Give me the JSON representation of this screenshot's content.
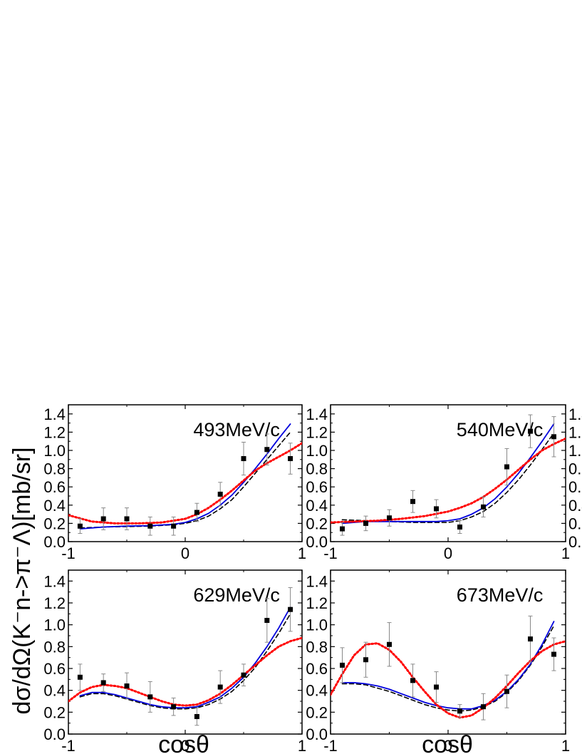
{
  "ylabel": "dσ/dΩ(K⁻n->π⁻Λ)[mb/sr]",
  "xlabel": "cosθ",
  "colors": {
    "dashed": "#000000",
    "solid": "#0000dd",
    "dotted": "#ff0000",
    "errorbar": "#888888",
    "points": "#000000"
  },
  "chart_data": [
    {
      "type": "scatter",
      "title": "493MeV/c",
      "xlim": [
        -1,
        1
      ],
      "ylim": [
        0.0,
        1.5
      ],
      "xticks": [
        "-1",
        "0",
        "1"
      ],
      "yticks": [
        "0.0",
        "0.2",
        "0.4",
        "0.6",
        "0.8",
        "1.0",
        "1.2",
        "1.4"
      ],
      "points": {
        "x": [
          -0.9,
          -0.7,
          -0.5,
          -0.3,
          -0.1,
          0.1,
          0.3,
          0.5,
          0.7,
          0.9
        ],
        "y": [
          0.17,
          0.25,
          0.25,
          0.17,
          0.17,
          0.32,
          0.52,
          0.91,
          1.01,
          0.91
        ],
        "err": [
          0.08,
          0.12,
          0.12,
          0.1,
          0.1,
          0.1,
          0.13,
          0.18,
          0.17,
          0.17
        ]
      },
      "series": [
        {
          "style": "dashed",
          "x": [
            -0.9,
            -0.7,
            -0.5,
            -0.3,
            -0.1,
            0.0,
            0.1,
            0.2,
            0.3,
            0.4,
            0.5,
            0.6,
            0.7,
            0.8,
            0.9
          ],
          "y": [
            0.15,
            0.16,
            0.165,
            0.17,
            0.185,
            0.2,
            0.23,
            0.28,
            0.36,
            0.46,
            0.6,
            0.75,
            0.9,
            1.05,
            1.2
          ]
        },
        {
          "style": "solid",
          "x": [
            -0.9,
            -0.7,
            -0.5,
            -0.3,
            -0.1,
            0.0,
            0.1,
            0.2,
            0.3,
            0.4,
            0.5,
            0.6,
            0.7,
            0.8,
            0.9
          ],
          "y": [
            0.14,
            0.16,
            0.17,
            0.175,
            0.19,
            0.21,
            0.25,
            0.31,
            0.4,
            0.51,
            0.65,
            0.8,
            0.96,
            1.13,
            1.29
          ]
        },
        {
          "style": "dotted",
          "x": [
            -1.0,
            -0.8,
            -0.6,
            -0.4,
            -0.2,
            0.0,
            0.1,
            0.2,
            0.3,
            0.4,
            0.5,
            0.6,
            0.7,
            0.8,
            0.9,
            1.0
          ],
          "y": [
            0.29,
            0.22,
            0.2,
            0.2,
            0.21,
            0.25,
            0.3,
            0.37,
            0.46,
            0.56,
            0.67,
            0.78,
            0.86,
            0.93,
            1.0,
            1.08
          ]
        }
      ]
    },
    {
      "type": "scatter",
      "title": "540MeV/c",
      "xlim": [
        -1,
        1
      ],
      "ylim": [
        0.0,
        1.5
      ],
      "xticks": [
        "-1",
        "0",
        "1"
      ],
      "yticks": [
        "0.0",
        "0.2",
        "0.4",
        "0.6",
        "0.8",
        "1.0",
        "1.2",
        "1.4"
      ],
      "points": {
        "x": [
          -0.9,
          -0.7,
          -0.5,
          -0.3,
          -0.1,
          0.1,
          0.3,
          0.5,
          0.7,
          0.9
        ],
        "y": [
          0.14,
          0.2,
          0.26,
          0.44,
          0.36,
          0.16,
          0.38,
          0.82,
          1.21,
          1.15
        ],
        "err": [
          0.07,
          0.08,
          0.09,
          0.12,
          0.1,
          0.07,
          0.11,
          0.2,
          0.18,
          0.22
        ]
      },
      "series": [
        {
          "style": "dashed",
          "x": [
            -0.9,
            -0.7,
            -0.5,
            -0.3,
            -0.1,
            0.0,
            0.1,
            0.2,
            0.3,
            0.4,
            0.5,
            0.6,
            0.7,
            0.8,
            0.9
          ],
          "y": [
            0.24,
            0.23,
            0.22,
            0.21,
            0.21,
            0.21,
            0.23,
            0.27,
            0.33,
            0.42,
            0.54,
            0.68,
            0.84,
            1.01,
            1.19
          ]
        },
        {
          "style": "solid",
          "x": [
            -0.9,
            -0.7,
            -0.5,
            -0.3,
            -0.1,
            0.0,
            0.1,
            0.2,
            0.3,
            0.4,
            0.5,
            0.6,
            0.7,
            0.8,
            0.9
          ],
          "y": [
            0.2,
            0.22,
            0.22,
            0.22,
            0.22,
            0.23,
            0.25,
            0.3,
            0.37,
            0.47,
            0.6,
            0.75,
            0.92,
            1.1,
            1.29
          ]
        },
        {
          "style": "dotted",
          "x": [
            -1.0,
            -0.8,
            -0.6,
            -0.4,
            -0.2,
            0.0,
            0.1,
            0.2,
            0.3,
            0.4,
            0.5,
            0.6,
            0.7,
            0.8,
            0.9,
            1.0
          ],
          "y": [
            0.21,
            0.22,
            0.23,
            0.25,
            0.28,
            0.33,
            0.37,
            0.42,
            0.49,
            0.58,
            0.68,
            0.79,
            0.9,
            1.0,
            1.07,
            1.13
          ]
        }
      ]
    },
    {
      "type": "scatter",
      "title": "629MeV/c",
      "xlim": [
        -1,
        1
      ],
      "ylim": [
        0.0,
        1.5
      ],
      "xticks": [
        "-1",
        "0",
        "1"
      ],
      "yticks": [
        "0.0",
        "0.2",
        "0.4",
        "0.6",
        "0.8",
        "1.0",
        "1.2",
        "1.4"
      ],
      "points": {
        "x": [
          -0.9,
          -0.7,
          -0.5,
          -0.3,
          -0.1,
          0.1,
          0.3,
          0.5,
          0.7,
          0.9
        ],
        "y": [
          0.52,
          0.47,
          0.44,
          0.34,
          0.25,
          0.16,
          0.43,
          0.54,
          1.04,
          1.14
        ],
        "err": [
          0.12,
          0.08,
          0.12,
          0.14,
          0.08,
          0.08,
          0.15,
          0.1,
          0.2,
          0.2
        ]
      },
      "series": [
        {
          "style": "dashed",
          "x": [
            -0.9,
            -0.8,
            -0.7,
            -0.6,
            -0.5,
            -0.4,
            -0.3,
            -0.2,
            -0.1,
            0.0,
            0.1,
            0.2,
            0.3,
            0.4,
            0.5,
            0.6,
            0.7,
            0.8,
            0.9
          ],
          "y": [
            0.34,
            0.37,
            0.37,
            0.35,
            0.32,
            0.29,
            0.26,
            0.24,
            0.23,
            0.23,
            0.24,
            0.27,
            0.32,
            0.39,
            0.49,
            0.61,
            0.76,
            0.92,
            1.1
          ]
        },
        {
          "style": "solid",
          "x": [
            -0.9,
            -0.8,
            -0.7,
            -0.6,
            -0.5,
            -0.4,
            -0.3,
            -0.2,
            -0.1,
            0.0,
            0.1,
            0.2,
            0.3,
            0.4,
            0.5,
            0.6,
            0.7,
            0.8,
            0.9
          ],
          "y": [
            0.35,
            0.38,
            0.38,
            0.36,
            0.33,
            0.3,
            0.27,
            0.25,
            0.24,
            0.24,
            0.25,
            0.29,
            0.34,
            0.42,
            0.52,
            0.65,
            0.8,
            0.97,
            1.16
          ]
        },
        {
          "style": "dotted",
          "x": [
            -1.0,
            -0.9,
            -0.8,
            -0.7,
            -0.6,
            -0.5,
            -0.4,
            -0.3,
            -0.2,
            -0.1,
            0.0,
            0.1,
            0.2,
            0.3,
            0.4,
            0.5,
            0.6,
            0.7,
            0.8,
            0.9,
            1.0
          ],
          "y": [
            0.3,
            0.38,
            0.43,
            0.45,
            0.44,
            0.42,
            0.38,
            0.34,
            0.3,
            0.27,
            0.26,
            0.27,
            0.31,
            0.37,
            0.45,
            0.54,
            0.63,
            0.72,
            0.8,
            0.85,
            0.88
          ]
        }
      ]
    },
    {
      "type": "scatter",
      "title": "673MeV/c",
      "xlim": [
        -1,
        1
      ],
      "ylim": [
        0.0,
        1.5
      ],
      "xticks": [
        "-1",
        "0",
        "1"
      ],
      "yticks": [
        "0.0",
        "0.2",
        "0.4",
        "0.6",
        "0.8",
        "1.0",
        "1.2",
        "1.4"
      ],
      "points": {
        "x": [
          -0.9,
          -0.7,
          -0.5,
          -0.3,
          -0.1,
          0.1,
          0.3,
          0.5,
          0.7,
          0.9
        ],
        "y": [
          0.63,
          0.68,
          0.82,
          0.49,
          0.43,
          0.21,
          0.25,
          0.39,
          0.87,
          0.73
        ],
        "err": [
          0.16,
          0.16,
          0.2,
          0.15,
          0.14,
          0.06,
          0.12,
          0.15,
          0.21,
          0.15
        ]
      },
      "series": [
        {
          "style": "dashed",
          "x": [
            -0.9,
            -0.8,
            -0.7,
            -0.6,
            -0.5,
            -0.4,
            -0.3,
            -0.2,
            -0.1,
            0.0,
            0.1,
            0.2,
            0.3,
            0.4,
            0.5,
            0.6,
            0.7,
            0.8,
            0.9
          ],
          "y": [
            0.46,
            0.46,
            0.45,
            0.42,
            0.39,
            0.35,
            0.31,
            0.27,
            0.24,
            0.22,
            0.21,
            0.22,
            0.25,
            0.3,
            0.38,
            0.49,
            0.63,
            0.8,
            0.99
          ]
        },
        {
          "style": "solid",
          "x": [
            -0.9,
            -0.8,
            -0.7,
            -0.6,
            -0.5,
            -0.4,
            -0.3,
            -0.2,
            -0.1,
            0.0,
            0.1,
            0.2,
            0.3,
            0.4,
            0.5,
            0.6,
            0.7,
            0.8,
            0.9
          ],
          "y": [
            0.47,
            0.47,
            0.46,
            0.44,
            0.41,
            0.37,
            0.33,
            0.29,
            0.26,
            0.24,
            0.23,
            0.23,
            0.26,
            0.31,
            0.39,
            0.5,
            0.64,
            0.82,
            1.03
          ]
        },
        {
          "style": "dotted",
          "x": [
            -1.0,
            -0.9,
            -0.8,
            -0.7,
            -0.6,
            -0.5,
            -0.4,
            -0.3,
            -0.2,
            -0.1,
            0.0,
            0.1,
            0.2,
            0.3,
            0.4,
            0.5,
            0.6,
            0.7,
            0.8,
            0.9,
            1.0
          ],
          "y": [
            0.36,
            0.55,
            0.72,
            0.82,
            0.83,
            0.77,
            0.66,
            0.52,
            0.39,
            0.27,
            0.19,
            0.15,
            0.17,
            0.24,
            0.33,
            0.44,
            0.56,
            0.67,
            0.76,
            0.82,
            0.85
          ]
        }
      ]
    }
  ]
}
